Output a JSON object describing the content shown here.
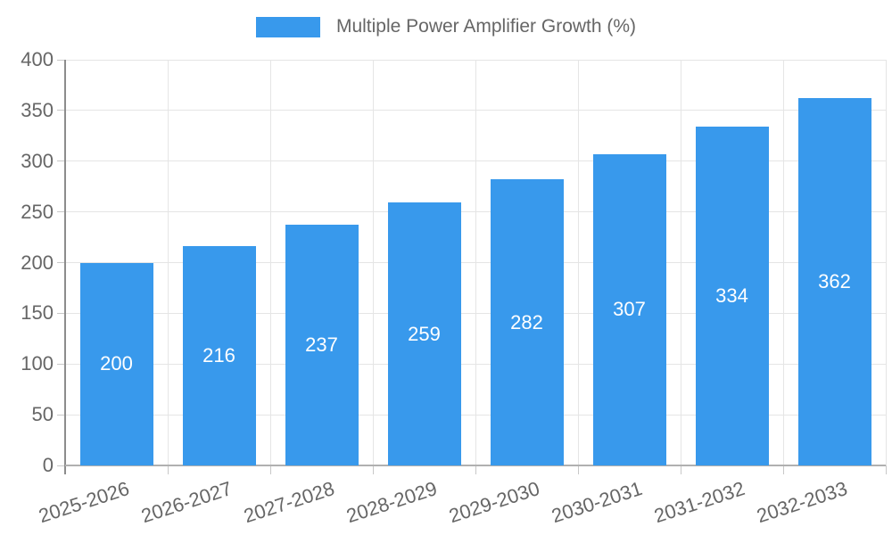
{
  "legend": {
    "label": "Multiple Power Amplifier Growth (%)"
  },
  "chart_data": {
    "type": "bar",
    "title": "Multiple Power Amplifier Growth (%)",
    "categories": [
      "2025-2026",
      "2026-2027",
      "2027-2028",
      "2028-2029",
      "2029-2030",
      "2030-2031",
      "2031-2032",
      "2032-2033"
    ],
    "series": [
      {
        "name": "Multiple Power Amplifier Growth (%)",
        "values": [
          200,
          216,
          237,
          259,
          282,
          307,
          334,
          362
        ]
      }
    ],
    "xlabel": "",
    "ylabel": "",
    "ylim": [
      0,
      400
    ],
    "ytick_step": 50,
    "yticks": [
      0,
      50,
      100,
      150,
      200,
      250,
      300,
      350,
      400
    ],
    "grid": true,
    "legend_position": "top",
    "value_labels": "inside-center",
    "colors": {
      "bar": "#3899EC",
      "axis_text": "#666666",
      "value_text": "#FFFFFF",
      "gridline": "#E5E5E5",
      "y_axis_line": "#8C8C8C",
      "x_axis_line": "#B0B0B0",
      "tick": "#C8C8C8"
    }
  }
}
